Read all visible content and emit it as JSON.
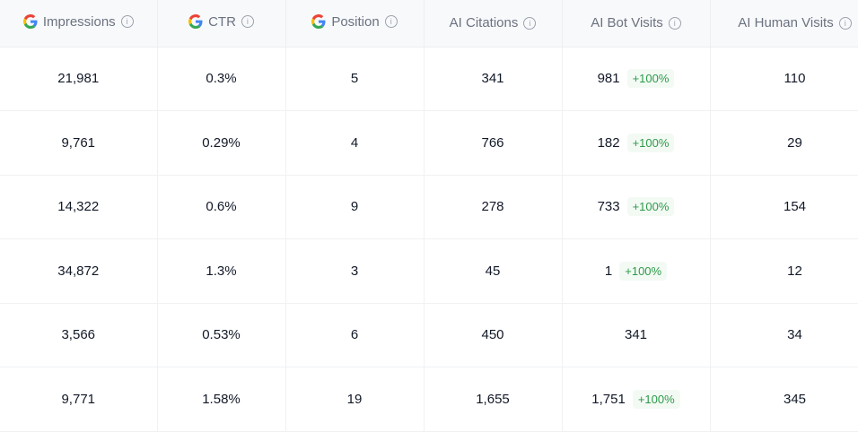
{
  "columns": [
    {
      "label": "Impressions",
      "google": true
    },
    {
      "label": "CTR",
      "google": true
    },
    {
      "label": "Position",
      "google": true
    },
    {
      "label": "AI Citations",
      "google": false
    },
    {
      "label": "AI Bot Visits",
      "google": false
    },
    {
      "label": "AI Human Visits",
      "google": false
    }
  ],
  "rows": [
    {
      "impressions": "21,981",
      "ctr": "0.3%",
      "position": "5",
      "citations": "341",
      "bot": "981",
      "bot_change": "+100%",
      "human": "110"
    },
    {
      "impressions": "9,761",
      "ctr": "0.29%",
      "position": "4",
      "citations": "766",
      "bot": "182",
      "bot_change": "+100%",
      "human": "29"
    },
    {
      "impressions": "14,322",
      "ctr": "0.6%",
      "position": "9",
      "citations": "278",
      "bot": "733",
      "bot_change": "+100%",
      "human": "154"
    },
    {
      "impressions": "34,872",
      "ctr": "1.3%",
      "position": "3",
      "citations": "45",
      "bot": "1",
      "bot_change": "+100%",
      "human": "12"
    },
    {
      "impressions": "3,566",
      "ctr": "0.53%",
      "position": "6",
      "citations": "450",
      "bot": "341",
      "bot_change": null,
      "human": "34"
    },
    {
      "impressions": "9,771",
      "ctr": "1.58%",
      "position": "19",
      "citations": "1,655",
      "bot": "1,751",
      "bot_change": "+100%",
      "human": "345"
    }
  ],
  "colors": {
    "badge_text": "#2e9a4a",
    "badge_bg": "#f3faf4",
    "header_bg": "#f8f9fb"
  }
}
